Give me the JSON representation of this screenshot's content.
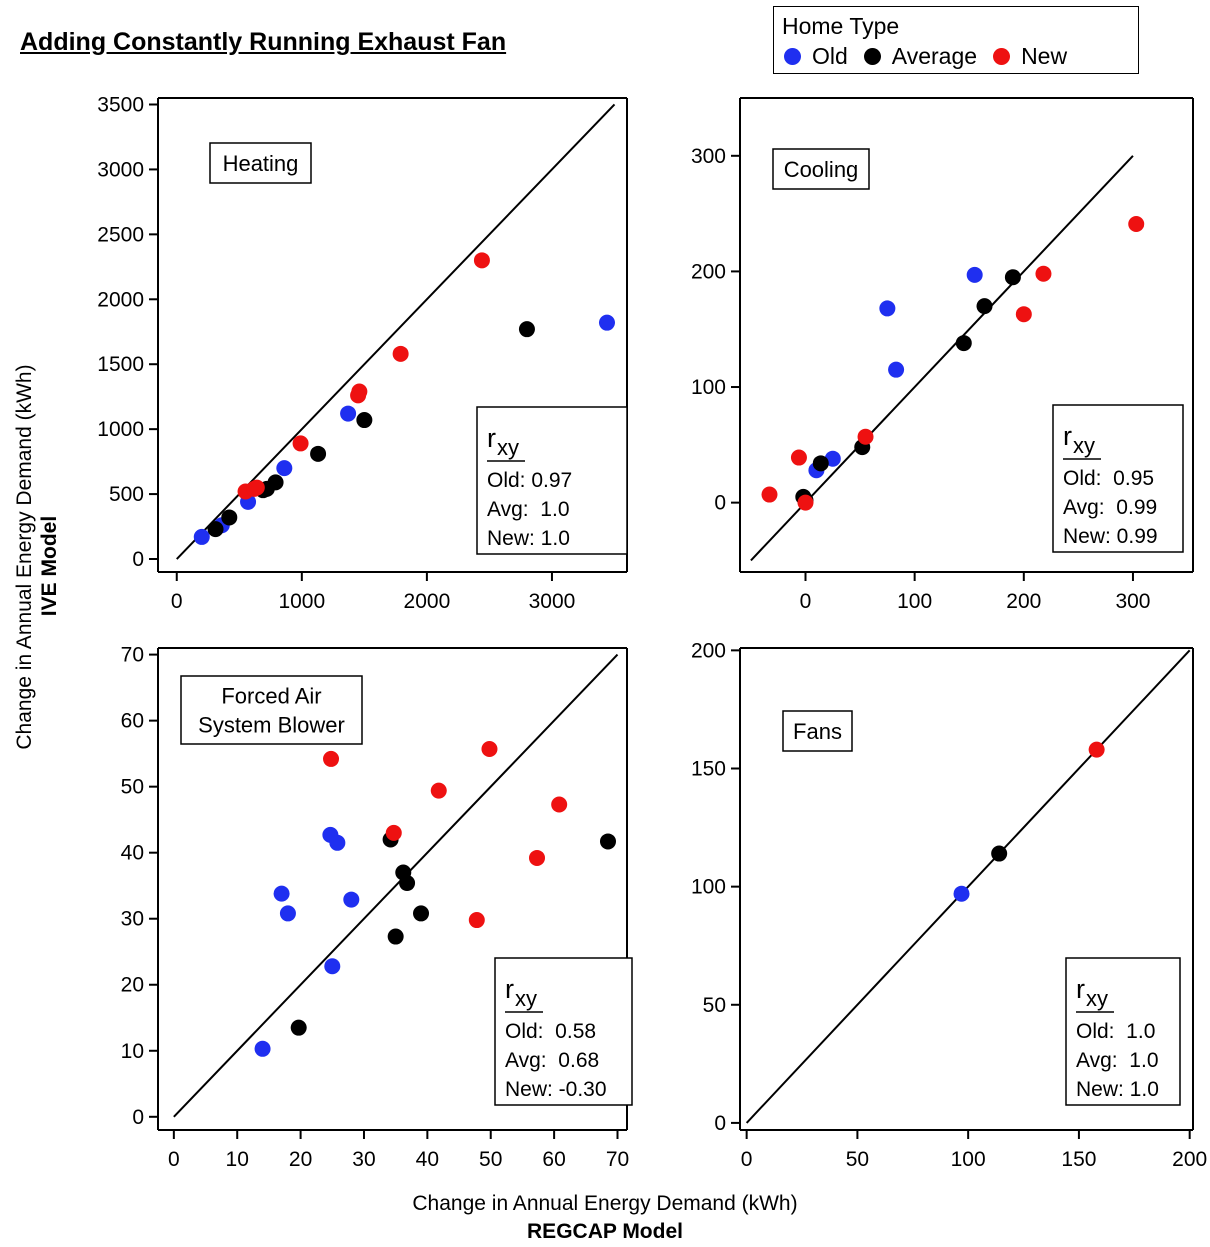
{
  "title": "Adding Constantly Running Exhaust Fan",
  "legend": {
    "title": "Home Type",
    "items": [
      {
        "label": "Old",
        "color": "#1f2ff0"
      },
      {
        "label": "Average",
        "color": "#000000"
      },
      {
        "label": "New",
        "color": "#ee1111"
      }
    ]
  },
  "xlabel_line1": "Change in Annual Energy Demand (kWh)",
  "xlabel_line2": "REGCAP Model",
  "ylabel_line1": "Change in Annual Energy Demand (kWh)",
  "ylabel_line2": "IVE Model",
  "chart_data": [
    {
      "type": "scatter",
      "panel_label": [
        "Heating"
      ],
      "xlim": [
        -150,
        3600
      ],
      "ylim": [
        -100,
        3550
      ],
      "xticks": [
        0,
        1000,
        2000,
        3000
      ],
      "yticks": [
        0,
        500,
        1000,
        1500,
        2000,
        2500,
        3000,
        3500
      ],
      "diagonal": [
        0,
        3500
      ],
      "stats": {
        "header": "r",
        "subscript": "xy",
        "lines": [
          "Old: 0.97",
          "Avg:  1.0",
          "New: 1.0"
        ]
      },
      "series": [
        {
          "name": "Old",
          "points": [
            [
              200,
              170
            ],
            [
              360,
              260
            ],
            [
              570,
              440
            ],
            [
              860,
              700
            ],
            [
              1370,
              1120
            ],
            [
              3440,
              1820
            ]
          ]
        },
        {
          "name": "Average",
          "points": [
            [
              310,
              230
            ],
            [
              420,
              320
            ],
            [
              690,
              530
            ],
            [
              720,
              540
            ],
            [
              790,
              590
            ],
            [
              1130,
              810
            ],
            [
              1500,
              1070
            ],
            [
              2800,
              1770
            ]
          ]
        },
        {
          "name": "New",
          "points": [
            [
              550,
              520
            ],
            [
              620,
              540
            ],
            [
              640,
              550
            ],
            [
              990,
              890
            ],
            [
              1450,
              1260
            ],
            [
              1460,
              1290
            ],
            [
              1790,
              1580
            ],
            [
              2440,
              2300
            ]
          ]
        }
      ]
    },
    {
      "type": "scatter",
      "panel_label": [
        "Cooling"
      ],
      "xlim": [
        -60,
        355
      ],
      "ylim": [
        -60,
        350
      ],
      "xticks": [
        0,
        100,
        200,
        300
      ],
      "yticks": [
        0,
        100,
        200,
        300
      ],
      "diagonal": [
        -50,
        300
      ],
      "stats": {
        "header": "r",
        "subscript": "xy",
        "lines": [
          "Old:  0.95",
          "Avg:  0.99",
          "New: 0.99"
        ]
      },
      "series": [
        {
          "name": "Old",
          "points": [
            [
              10,
              28
            ],
            [
              25,
              38
            ],
            [
              75,
              168
            ],
            [
              83,
              115
            ],
            [
              155,
              197
            ]
          ]
        },
        {
          "name": "Average",
          "points": [
            [
              -2,
              5
            ],
            [
              0,
              2
            ],
            [
              14,
              34
            ],
            [
              52,
              48
            ],
            [
              145,
              138
            ],
            [
              164,
              170
            ],
            [
              190,
              195
            ]
          ]
        },
        {
          "name": "New",
          "points": [
            [
              -33,
              7
            ],
            [
              -6,
              39
            ],
            [
              0,
              0
            ],
            [
              55,
              57
            ],
            [
              200,
              163
            ],
            [
              218,
              198
            ],
            [
              303,
              241
            ]
          ]
        }
      ]
    },
    {
      "type": "scatter",
      "panel_label": [
        "Forced Air",
        "System Blower"
      ],
      "xlim": [
        -2.5,
        71.5
      ],
      "ylim": [
        -2,
        71
      ],
      "xticks": [
        0,
        10,
        20,
        30,
        40,
        50,
        60,
        70
      ],
      "yticks": [
        0,
        10,
        20,
        30,
        40,
        50,
        60,
        70
      ],
      "diagonal": [
        0,
        70
      ],
      "stats": {
        "header": "r",
        "subscript": "xy",
        "lines": [
          "Old:  0.58",
          "Avg:  0.68",
          "New: -0.30"
        ]
      },
      "series": [
        {
          "name": "Old",
          "points": [
            [
              14,
              10.3
            ],
            [
              17,
              33.8
            ],
            [
              18,
              30.8
            ],
            [
              24.7,
              42.7
            ],
            [
              25,
              22.8
            ],
            [
              25.8,
              41.5
            ],
            [
              28,
              32.9
            ]
          ]
        },
        {
          "name": "Average",
          "points": [
            [
              19.7,
              13.5
            ],
            [
              34.2,
              42
            ],
            [
              35,
              27.3
            ],
            [
              36.2,
              37
            ],
            [
              36.8,
              35.4
            ],
            [
              39,
              30.8
            ],
            [
              68.5,
              41.7
            ]
          ]
        },
        {
          "name": "New",
          "points": [
            [
              24.8,
              54.2
            ],
            [
              34.7,
              43
            ],
            [
              41.8,
              49.4
            ],
            [
              47.8,
              29.8
            ],
            [
              49.8,
              55.7
            ],
            [
              57.3,
              39.2
            ],
            [
              60.8,
              47.3
            ]
          ]
        }
      ]
    },
    {
      "type": "scatter",
      "panel_label": [
        "Fans"
      ],
      "xlim": [
        -3,
        201.5
      ],
      "ylim": [
        -3,
        201
      ],
      "xticks": [
        0,
        50,
        100,
        150,
        200
      ],
      "yticks": [
        0,
        50,
        100,
        150,
        200
      ],
      "diagonal": [
        0,
        200
      ],
      "stats": {
        "header": "r",
        "subscript": "xy",
        "lines": [
          "Old:  1.0",
          "Avg:  1.0",
          "New: 1.0"
        ]
      },
      "series": [
        {
          "name": "Old",
          "points": [
            [
              97,
              97
            ]
          ]
        },
        {
          "name": "Average",
          "points": [
            [
              114,
              114
            ]
          ]
        },
        {
          "name": "New",
          "points": [
            [
              158,
              158
            ]
          ]
        }
      ]
    }
  ]
}
